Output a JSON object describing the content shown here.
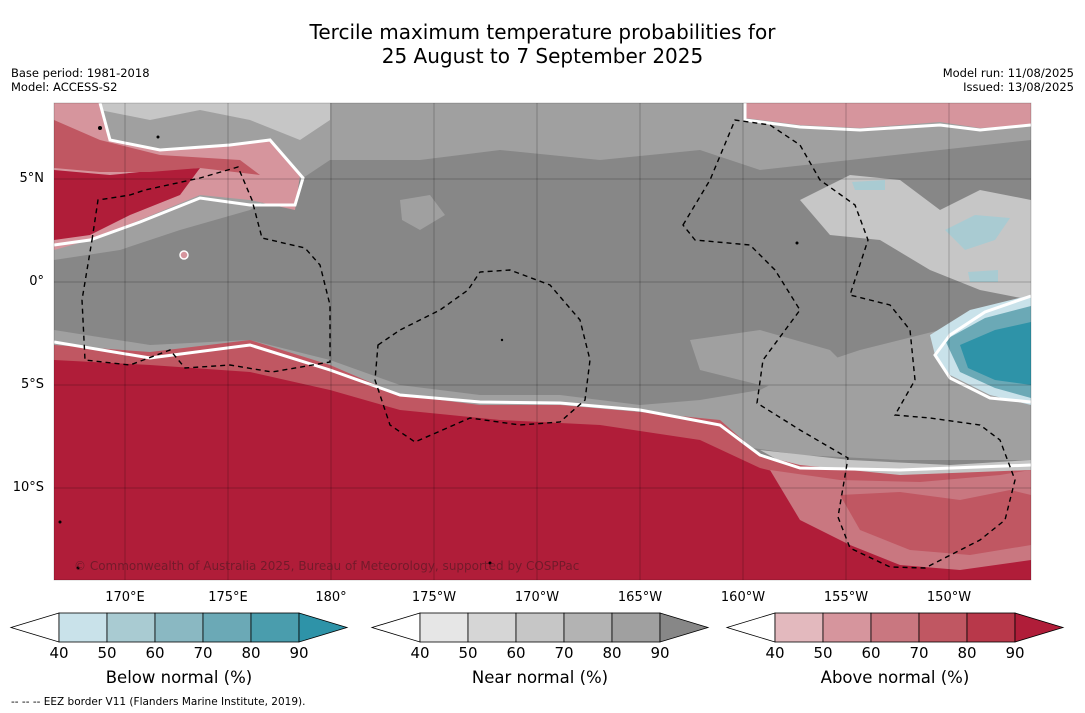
{
  "title": {
    "line1": "Tercile maximum temperature probabilities for",
    "line2": "25 August to 7 September 2025"
  },
  "meta": {
    "base_period": "Base period: 1981-2018",
    "model": "Model: ACCESS-S2",
    "model_run": "Model run: 11/08/2025",
    "issued": "Issued: 13/08/2025"
  },
  "map": {
    "lat_labels": [
      "5°N",
      "0°",
      "5°S",
      "10°S"
    ],
    "lon_labels": [
      "170°E",
      "175°E",
      "180°",
      "175°W",
      "170°W",
      "165°W",
      "160°W",
      "155°W",
      "150°W"
    ],
    "copyright": "© Commonwealth of Australia 2025, Bureau of Meteorology, supported by COSPPac"
  },
  "colorbars": [
    {
      "label": "Below normal (%)",
      "ticks": [
        "40",
        "50",
        "60",
        "70",
        "80",
        "90"
      ],
      "colors": [
        "#ffffff",
        "#c9e2ea",
        "#a9cbd2",
        "#8ab8c2",
        "#6ba9b6",
        "#4a9dad",
        "#2e93a8"
      ]
    },
    {
      "label": "Near normal (%)",
      "ticks": [
        "40",
        "50",
        "60",
        "70",
        "80",
        "90"
      ],
      "colors": [
        "#ffffff",
        "#e6e6e6",
        "#d6d6d6",
        "#c6c6c6",
        "#b3b3b3",
        "#a0a0a0",
        "#878787"
      ]
    },
    {
      "label": "Above normal (%)",
      "ticks": [
        "40",
        "50",
        "60",
        "70",
        "80",
        "90"
      ],
      "colors": [
        "#ffffff",
        "#e3b9be",
        "#d6959d",
        "#c97780",
        "#c05762",
        "#b8384a",
        "#b01d39"
      ]
    }
  ],
  "footnote": "--  --  -- EEZ border V11 (Flanders Marine Institute, 2019)."
}
